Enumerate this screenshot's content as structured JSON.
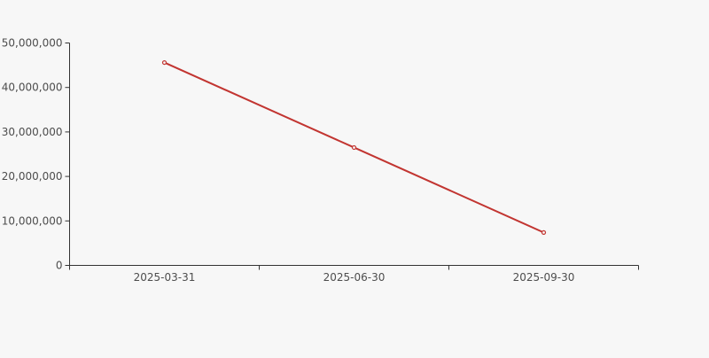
{
  "page": {
    "background_color": "#f7f7f7"
  },
  "chart_data": {
    "type": "line",
    "title": "",
    "xlabel": "",
    "ylabel": "",
    "categories": [
      "2025-03-31",
      "2025-06-30",
      "2025-09-30"
    ],
    "series": [
      {
        "name": "",
        "values": [
          45600000,
          26500000,
          7400000
        ],
        "color": "#c23531",
        "marker": "empty-circle",
        "line_width": 2
      }
    ],
    "ylim": [
      0,
      50000000
    ],
    "ytick_interval": 10000000,
    "ytick_labels": [
      "0",
      "10,000,000",
      "20,000,000",
      "30,000,000",
      "40,000,000",
      "50,000,000"
    ],
    "grid": false,
    "legend": "none",
    "axis_color": "#333333",
    "label_color": "#4d4d4d",
    "background_color": "#f7f7f7"
  }
}
